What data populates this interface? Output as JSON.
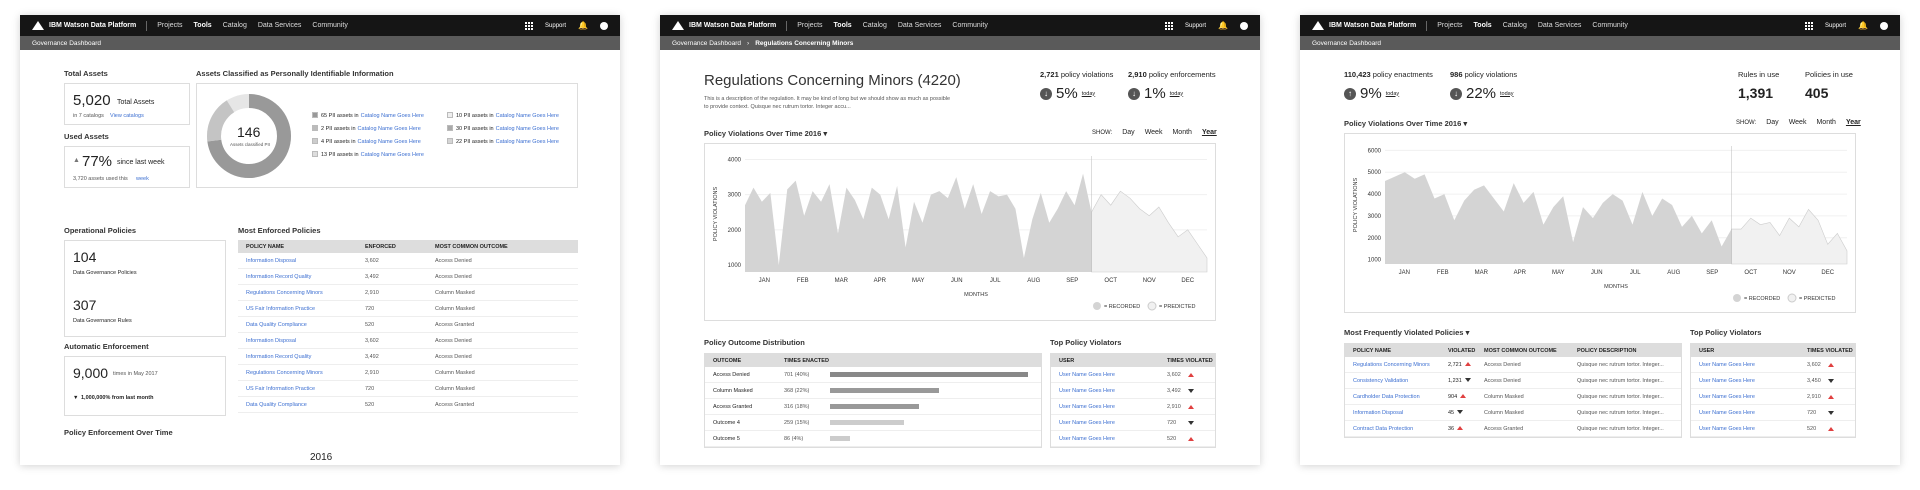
{
  "colors": {
    "topbar": "#151515",
    "crumb": "#5a5a5a",
    "link": "#3c6fd1",
    "accent_red": "#e04040"
  },
  "topbar": {
    "brand": "IBM Watson Data Platform",
    "nav": [
      "Projects",
      "Tools",
      "Catalog",
      "Data Services",
      "Community"
    ],
    "support": "Support"
  },
  "s1": {
    "crumb": "Governance Dashboard",
    "total_assets_label": "Total Assets",
    "total_assets_value": "5,020",
    "total_assets_unit": "Total Assets",
    "in_catalogs": "in 7 catalogs",
    "view_catalogs": "View catalogs",
    "used_assets_label": "Used Assets",
    "used_pct": "77%",
    "since_last_week": "since last week",
    "assets_used": "3,720 assets used this",
    "week": "week",
    "pii_label": "Assets Classified as Personally Identifiable Information",
    "donut_value": "146",
    "donut_caption": "Assets classified PII",
    "pii_items": [
      {
        "count": "65 PII assets in",
        "catalog": "Catalog Name Goes Here"
      },
      {
        "count": "2 PII assets in",
        "catalog": "Catalog Name Goes Here"
      },
      {
        "count": "4 PII assets in",
        "catalog": "Catalog Name Goes Here"
      },
      {
        "count": "13 PII assets in",
        "catalog": "Catalog Name Goes Here"
      },
      {
        "count": "10 PII assets in",
        "catalog": "Catalog Name Goes Here"
      },
      {
        "count": "30 PII assets in",
        "catalog": "Catalog Name Goes Here"
      },
      {
        "count": "22 PII assets in",
        "catalog": "Catalog Name Goes Here"
      }
    ],
    "op_policies_label": "Operational Policies",
    "gov_policies_value": "104",
    "gov_policies_label": "Data Governance Policies",
    "gov_rules_value": "307",
    "gov_rules_label": "Data Governance Rules",
    "auto_label": "Automatic Enforcement",
    "auto_value": "9,000",
    "auto_sub": "times in May 2017",
    "auto_delta": "1,000,000% from last month",
    "most_enforced_label": "Most Enforced Policies",
    "me_headers": [
      "POLICY NAME",
      "ENFORCED",
      "MOST COMMON OUTCOME"
    ],
    "me_rows": [
      [
        "Information Disposal",
        "3,602",
        "Access Denied"
      ],
      [
        "Information Record Quality",
        "3,492",
        "Access Denied"
      ],
      [
        "Regulations Concerning Minors",
        "2,910",
        "Column Masked"
      ],
      [
        "US Fair Information Practice",
        "720",
        "Column Masked"
      ],
      [
        "Data Quality Compliance",
        "520",
        "Access Granted"
      ],
      [
        "Information Disposal",
        "3,602",
        "Access Denied"
      ],
      [
        "Information Record Quality",
        "3,492",
        "Access Denied"
      ],
      [
        "Regulations Concerning Minors",
        "2,910",
        "Column Masked"
      ],
      [
        "US Fair Information Practice",
        "720",
        "Column Masked"
      ],
      [
        "Data Quality Compliance",
        "520",
        "Access Granted"
      ]
    ],
    "enf_over_time": "Policy Enforcement Over Time",
    "year": "2016"
  },
  "s2": {
    "crumb1": "Governance Dashboard",
    "crumb2": "Regulations Concerning Minors",
    "title": "Regulations Concerning Minors (4220)",
    "desc1": "This is a description of the regulation. It may be kind of long but we should show as much as possible",
    "desc2": "to provide context. Quisque nec rutrum tortor. Integer accu...",
    "viol_count": "2,721",
    "viol_label": "policy violations",
    "viol_pct": "5%",
    "enf_count": "2,910",
    "enf_label": "policy enforcements",
    "enf_pct": "1%",
    "today": "today",
    "chart_title": "Policy Violations Over Time 2016",
    "show": "SHOW:",
    "tabs": [
      "Day",
      "Week",
      "Month",
      "Year"
    ],
    "legend_recorded": "= RECORDED",
    "legend_predicted": "= PREDICTED",
    "outcome_title": "Policy Outcome Distribution",
    "outcome_headers": [
      "OUTCOME",
      "TIMES ENACTED"
    ],
    "outcome_rows": [
      {
        "name": "Access Denied",
        "times": "701 (40%)",
        "pct": 40
      },
      {
        "name": "Column Masked",
        "times": "368 (22%)",
        "pct": 22
      },
      {
        "name": "Access Granted",
        "times": "316 (18%)",
        "pct": 18
      },
      {
        "name": "Outcome 4",
        "times": "259 (15%)",
        "pct": 15
      },
      {
        "name": "Outcome 5",
        "times": "86 (4%)",
        "pct": 4
      }
    ],
    "top_viol_title": "Top Policy Violators",
    "tv_headers": [
      "USER",
      "TIMES VIOLATED"
    ],
    "tv_rows": [
      [
        "User Name Goes Here",
        "3,602"
      ],
      [
        "User Name Goes Here",
        "3,492"
      ],
      [
        "User Name Goes Here",
        "2,910"
      ],
      [
        "User Name Goes Here",
        "720"
      ],
      [
        "User Name Goes Here",
        "520"
      ]
    ]
  },
  "s3": {
    "crumb": "Governance Dashboard",
    "enf_count": "110,423",
    "enf_label": "policy enactments",
    "enf_pct": "9%",
    "viol_count": "986",
    "viol_label": "policy violations",
    "viol_pct": "22%",
    "today": "today",
    "rules_label": "Rules in use",
    "rules_value": "1,391",
    "policies_label": "Policies in use",
    "policies_value": "405",
    "chart_title": "Policy Violations Over Time 2016",
    "show": "SHOW:",
    "tabs": [
      "Day",
      "Week",
      "Month",
      "Year"
    ],
    "legend_recorded": "= RECORDED",
    "legend_predicted": "= PREDICTED",
    "mfv_title": "Most Frequently Violated Policies",
    "mfv_headers": [
      "POLICY NAME",
      "VIOLATED",
      "MOST COMMON OUTCOME",
      "POLICY DESCRIPTION"
    ],
    "mfv_rows": [
      [
        "Regulations Concerning Minors",
        "2,721",
        "Access Denied",
        "Quisque nec rutrum tortor. Integer..."
      ],
      [
        "Consistency Validation",
        "1,231",
        "Access Denied",
        "Quisque nec rutrum tortor. Integer..."
      ],
      [
        "Cardholder Data Protection",
        "904",
        "Column Masked",
        "Quisque nec rutrum tortor. Integer..."
      ],
      [
        "Information Disposal",
        "45",
        "Column Masked",
        "Quisque nec rutrum tortor. Integer..."
      ],
      [
        "Contract Data Protection",
        "36",
        "Access Granted",
        "Quisque nec rutrum tortor. Integer..."
      ]
    ],
    "tpv_title": "Top Policy Violators",
    "tpv_headers": [
      "USER",
      "TIMES VIOLATED"
    ],
    "tpv_rows": [
      [
        "User Name Goes Here",
        "3,602"
      ],
      [
        "User Name Goes Here",
        "3,450"
      ],
      [
        "User Name Goes Here",
        "2,910"
      ],
      [
        "User Name Goes Here",
        "720"
      ],
      [
        "User Name Goes Here",
        "520"
      ]
    ]
  },
  "chart_data": [
    {
      "type": "area",
      "ylabel": "POLICY VIOLATIONS",
      "xlabel": "MONTHS",
      "x": [
        "JAN",
        "FEB",
        "MAR",
        "APR",
        "MAY",
        "JUN",
        "JUL",
        "AUG",
        "SEP",
        "OCT",
        "NOV",
        "DEC"
      ],
      "yticks": [
        1000,
        2000,
        3000,
        4000
      ],
      "ylim": [
        800,
        4100
      ],
      "recorded": [
        2700,
        3200,
        2800,
        3050,
        1000,
        3150,
        3400,
        2400,
        3100,
        2800,
        3300,
        1900,
        3200,
        2850,
        2300,
        3200,
        3000,
        2300,
        3250,
        1500,
        2800,
        2200,
        3000,
        3100,
        2900,
        3500,
        2600,
        3300,
        2450,
        3100,
        2950,
        3000,
        2600,
        1200,
        2300,
        3050,
        2200,
        2600,
        3100,
        2700,
        3600,
        2500
      ],
      "predicted": [
        3000,
        2700,
        3100,
        2900,
        2600,
        2400,
        2650,
        2200,
        1800,
        2000,
        1600,
        1200
      ]
    },
    {
      "type": "area",
      "ylabel": "POLICY VIOLATIONS",
      "xlabel": "MONTHS",
      "x": [
        "JAN",
        "FEB",
        "MAR",
        "APR",
        "MAY",
        "JUN",
        "JUL",
        "AUG",
        "SEP",
        "OCT",
        "NOV",
        "DEC"
      ],
      "yticks": [
        1000,
        2000,
        3000,
        4000,
        5000,
        6000
      ],
      "ylim": [
        800,
        6200
      ],
      "recorded": [
        4600,
        4800,
        5000,
        4700,
        4900,
        3800,
        4000,
        2800,
        3700,
        4200,
        4400,
        3800,
        3200,
        4500,
        3600,
        4100,
        2600,
        3400,
        3900,
        1800,
        3400,
        2900,
        3600,
        4000,
        3700,
        2600,
        4100,
        3000,
        3800,
        3500,
        2500,
        3000,
        2200,
        2800,
        1600,
        2400
      ],
      "predicted": [
        2400,
        2900,
        2600,
        2700,
        2100,
        2900,
        2500,
        3300,
        2800,
        1700,
        2200,
        1400
      ]
    }
  ]
}
